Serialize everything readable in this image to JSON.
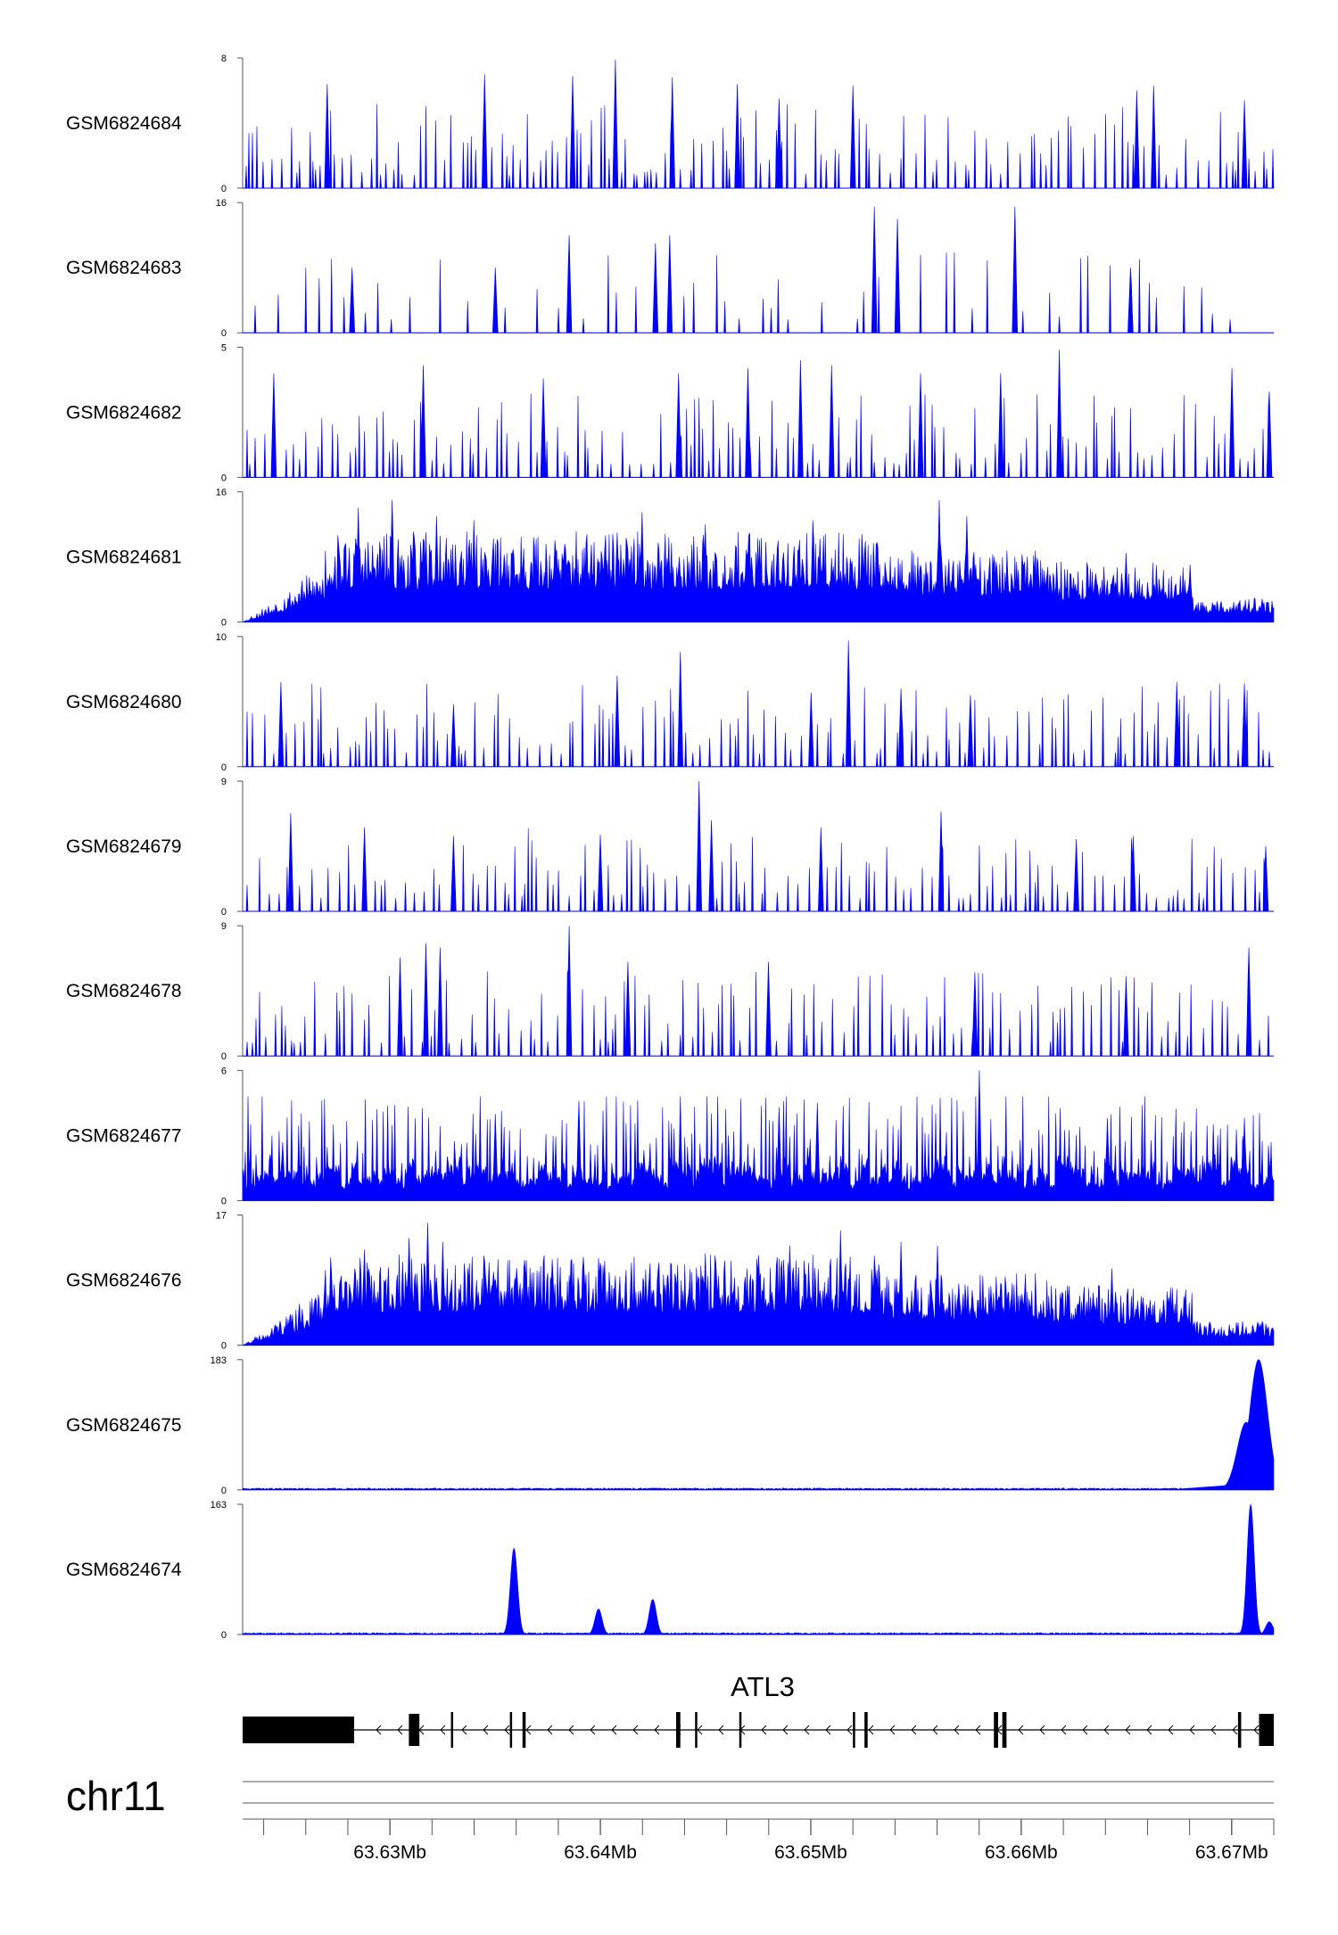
{
  "colors": {
    "signal": "#0000ff",
    "gene": "#000000",
    "axis": "#555555"
  },
  "chart_data": {
    "type": "area",
    "chromosome": "chr11",
    "xlim": [
      63623000,
      63672000
    ],
    "gene": {
      "name": "ATL3",
      "strand": "-",
      "start": 63623000,
      "end": 63672000,
      "exons": [
        [
          63623000,
          63628300
        ],
        [
          63630900,
          63631400
        ],
        [
          63632900,
          63633000
        ],
        [
          63635700,
          63635800
        ],
        [
          63636300,
          63636450
        ],
        [
          63643600,
          63643800
        ],
        [
          63644500,
          63644600
        ],
        [
          63646600,
          63646700
        ],
        [
          63652000,
          63652100
        ],
        [
          63652550,
          63652700
        ],
        [
          63658700,
          63658900
        ],
        [
          63659100,
          63659300
        ],
        [
          63670300,
          63670450
        ],
        [
          63671300,
          63672000
        ]
      ]
    },
    "ticks": {
      "labeled": [
        63630000,
        63640000,
        63650000,
        63660000,
        63670000
      ],
      "labels": [
        "63.63Mb",
        "63.64Mb",
        "63.65Mb",
        "63.66Mb",
        "63.67Mb"
      ],
      "minor_step": 2000
    },
    "series": [
      {
        "name": "GSM6824684",
        "ymax": 8,
        "ylabels": [
          "8",
          "0"
        ],
        "profile": "sparse",
        "seed": 11,
        "peaks": [
          [
            63627000,
            6.4
          ],
          [
            63634500,
            7.0
          ],
          [
            63638700,
            6.9
          ],
          [
            63640700,
            7.9
          ],
          [
            63643400,
            6.8
          ],
          [
            63646500,
            6.4
          ],
          [
            63648500,
            5.5
          ],
          [
            63652000,
            6.3
          ],
          [
            63665500,
            6.0
          ],
          [
            63666300,
            6.3
          ],
          [
            63670600,
            5.4
          ]
        ]
      },
      {
        "name": "GSM6824683",
        "ymax": 16,
        "ylabels": [
          "16",
          "0"
        ],
        "profile": "spiky",
        "seed": 23,
        "peaks": [
          [
            63628200,
            8.0
          ],
          [
            63635000,
            8.0
          ],
          [
            63638500,
            12.0
          ],
          [
            63642600,
            11.0
          ],
          [
            63643300,
            12.0
          ],
          [
            63653000,
            15.5
          ],
          [
            63654100,
            14.0
          ],
          [
            63659700,
            15.5
          ],
          [
            63665200,
            8.0
          ]
        ]
      },
      {
        "name": "GSM6824682",
        "ymax": 5,
        "ylabels": [
          "5",
          "0"
        ],
        "profile": "sparse",
        "seed": 37,
        "peaks": [
          [
            63624500,
            4.0
          ],
          [
            63631600,
            4.3
          ],
          [
            63637300,
            3.8
          ],
          [
            63643700,
            4.0
          ],
          [
            63647000,
            4.2
          ],
          [
            63649500,
            4.5
          ],
          [
            63651000,
            4.3
          ],
          [
            63655200,
            4.0
          ],
          [
            63659000,
            4.0
          ],
          [
            63661800,
            4.9
          ],
          [
            63670000,
            4.2
          ],
          [
            63671800,
            3.3
          ]
        ]
      },
      {
        "name": "GSM6824681",
        "ymax": 16,
        "ylabels": [
          "16",
          "0"
        ],
        "profile": "dense",
        "seed": 53,
        "peaks": [
          [
            63628500,
            14.0
          ],
          [
            63630100,
            15.0
          ],
          [
            63632200,
            13.0
          ],
          [
            63634000,
            12.5
          ],
          [
            63640800,
            11.0
          ],
          [
            63642000,
            13.5
          ],
          [
            63645000,
            12.0
          ],
          [
            63650100,
            12.5
          ],
          [
            63656100,
            15.0
          ],
          [
            63657400,
            13.0
          ],
          [
            63665000,
            8.5
          ]
        ]
      },
      {
        "name": "GSM6824680",
        "ymax": 10,
        "ylabels": [
          "10",
          "0"
        ],
        "profile": "sparse",
        "seed": 71,
        "peaks": [
          [
            63624800,
            6.5
          ],
          [
            63633000,
            4.8
          ],
          [
            63640800,
            7.0
          ],
          [
            63643800,
            8.8
          ],
          [
            63650000,
            5.7
          ],
          [
            63651800,
            9.7
          ],
          [
            63654300,
            6.0
          ],
          [
            63657600,
            5.5
          ],
          [
            63667400,
            6.5
          ],
          [
            63670600,
            6.4
          ]
        ]
      },
      {
        "name": "GSM6824679",
        "ymax": 9,
        "ylabels": [
          "9",
          "0"
        ],
        "profile": "sparse",
        "seed": 89,
        "peaks": [
          [
            63625300,
            6.8
          ],
          [
            63628800,
            5.8
          ],
          [
            63633000,
            5.2
          ],
          [
            63640000,
            5.3
          ],
          [
            63644700,
            9.0
          ],
          [
            63645300,
            6.3
          ],
          [
            63650500,
            5.8
          ],
          [
            63656200,
            6.9
          ],
          [
            63662600,
            5.0
          ],
          [
            63665300,
            5.2
          ],
          [
            63671600,
            4.5
          ]
        ]
      },
      {
        "name": "GSM6824678",
        "ymax": 9,
        "ylabels": [
          "9",
          "0"
        ],
        "profile": "sparse",
        "seed": 97,
        "peaks": [
          [
            63630500,
            6.8
          ],
          [
            63631700,
            7.8
          ],
          [
            63632400,
            7.5
          ],
          [
            63638500,
            9.0
          ],
          [
            63641300,
            6.5
          ],
          [
            63648000,
            6.5
          ],
          [
            63657800,
            5.8
          ],
          [
            63665000,
            5.5
          ],
          [
            63670800,
            7.5
          ]
        ]
      },
      {
        "name": "GSM6824677",
        "ymax": 6,
        "ylabels": [
          "6",
          "0"
        ],
        "profile": "dense-sparse",
        "seed": 113,
        "peaks": [
          [
            63635000,
            4.0
          ],
          [
            63639000,
            4.6
          ],
          [
            63643800,
            4.0
          ],
          [
            63648500,
            4.3
          ],
          [
            63650300,
            4.5
          ],
          [
            63658000,
            6.0
          ],
          [
            63664100,
            3.8
          ],
          [
            63670600,
            3.8
          ]
        ]
      },
      {
        "name": "GSM6824676",
        "ymax": 17,
        "ylabels": [
          "17",
          "0"
        ],
        "profile": "dense",
        "seed": 131,
        "peaks": [
          [
            63628800,
            12.5
          ],
          [
            63630900,
            14.0
          ],
          [
            63631800,
            16.0
          ],
          [
            63632500,
            13.5
          ],
          [
            63638600,
            11.0
          ],
          [
            63645000,
            12.0
          ],
          [
            63649000,
            13.0
          ],
          [
            63651400,
            15.0
          ],
          [
            63654300,
            13.5
          ],
          [
            63656000,
            13.0
          ],
          [
            63664300,
            10.0
          ]
        ]
      },
      {
        "name": "GSM6824675",
        "ymax": 183,
        "ylabels": [
          "183",
          "0"
        ],
        "profile": "flat-end",
        "seed": 149,
        "peaks": [
          [
            63671300,
            183
          ],
          [
            63670700,
            95
          ]
        ]
      },
      {
        "name": "GSM6824674",
        "ymax": 163,
        "ylabels": [
          "163",
          "0"
        ],
        "profile": "flat-peaks",
        "seed": 167,
        "peaks": [
          [
            63635900,
            108
          ],
          [
            63639900,
            32
          ],
          [
            63642500,
            44
          ],
          [
            63670900,
            163
          ],
          [
            63671800,
            16
          ]
        ]
      }
    ]
  }
}
